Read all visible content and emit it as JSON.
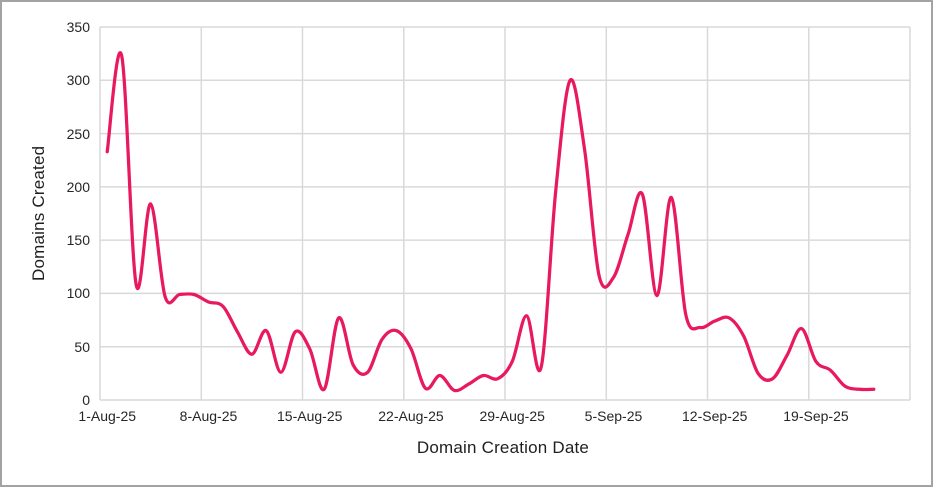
{
  "frame": {
    "background_color": "#ffffff",
    "border_color": "#a3a3a3"
  },
  "chart_data": {
    "type": "line",
    "title": "",
    "xlabel": "Domain Creation Date",
    "ylabel": "Domains Created",
    "legend_position": "none",
    "grid": "both",
    "smooth": true,
    "line_color": "#e8195f",
    "grid_color": "#d9d9d9",
    "tick_label_color": "#262626",
    "axis_title_color": "#1f1f1f",
    "ylim": [
      0,
      350
    ],
    "y_ticks": [
      0,
      50,
      100,
      150,
      200,
      250,
      300,
      350
    ],
    "x_tick_labels": [
      "1-Aug-25",
      "8-Aug-25",
      "15-Aug-25",
      "22-Aug-25",
      "29-Aug-25",
      "5-Sep-25",
      "12-Sep-25",
      "19-Sep-25"
    ],
    "x_tick_interval_days": 7,
    "x_axis_total_days": 56,
    "x": [
      "1-Aug-25",
      "2-Aug-25",
      "3-Aug-25",
      "4-Aug-25",
      "5-Aug-25",
      "6-Aug-25",
      "7-Aug-25",
      "8-Aug-25",
      "9-Aug-25",
      "10-Aug-25",
      "11-Aug-25",
      "12-Aug-25",
      "13-Aug-25",
      "14-Aug-25",
      "15-Aug-25",
      "16-Aug-25",
      "17-Aug-25",
      "18-Aug-25",
      "19-Aug-25",
      "20-Aug-25",
      "21-Aug-25",
      "22-Aug-25",
      "23-Aug-25",
      "24-Aug-25",
      "25-Aug-25",
      "26-Aug-25",
      "27-Aug-25",
      "28-Aug-25",
      "29-Aug-25",
      "30-Aug-25",
      "31-Aug-25",
      "1-Sep-25",
      "2-Sep-25",
      "3-Sep-25",
      "4-Sep-25",
      "5-Sep-25",
      "6-Sep-25",
      "7-Sep-25",
      "8-Sep-25",
      "9-Sep-25",
      "10-Sep-25",
      "11-Sep-25",
      "12-Sep-25",
      "13-Sep-25",
      "14-Sep-25",
      "15-Sep-25",
      "16-Sep-25",
      "17-Sep-25",
      "18-Sep-25",
      "19-Sep-25",
      "20-Sep-25",
      "21-Sep-25",
      "22-Sep-25",
      "23-Sep-25"
    ],
    "values": [
      233,
      323,
      108,
      184,
      97,
      99,
      99,
      92,
      88,
      64,
      43,
      65,
      26,
      64,
      48,
      10,
      77,
      33,
      26,
      57,
      65,
      48,
      11,
      23,
      9,
      15,
      23,
      20,
      36,
      79,
      31,
      195,
      300,
      235,
      117,
      115,
      155,
      193,
      98,
      190,
      80,
      68,
      74,
      77,
      60,
      25,
      20,
      42,
      67,
      36,
      28,
      13,
      10,
      10
    ]
  }
}
